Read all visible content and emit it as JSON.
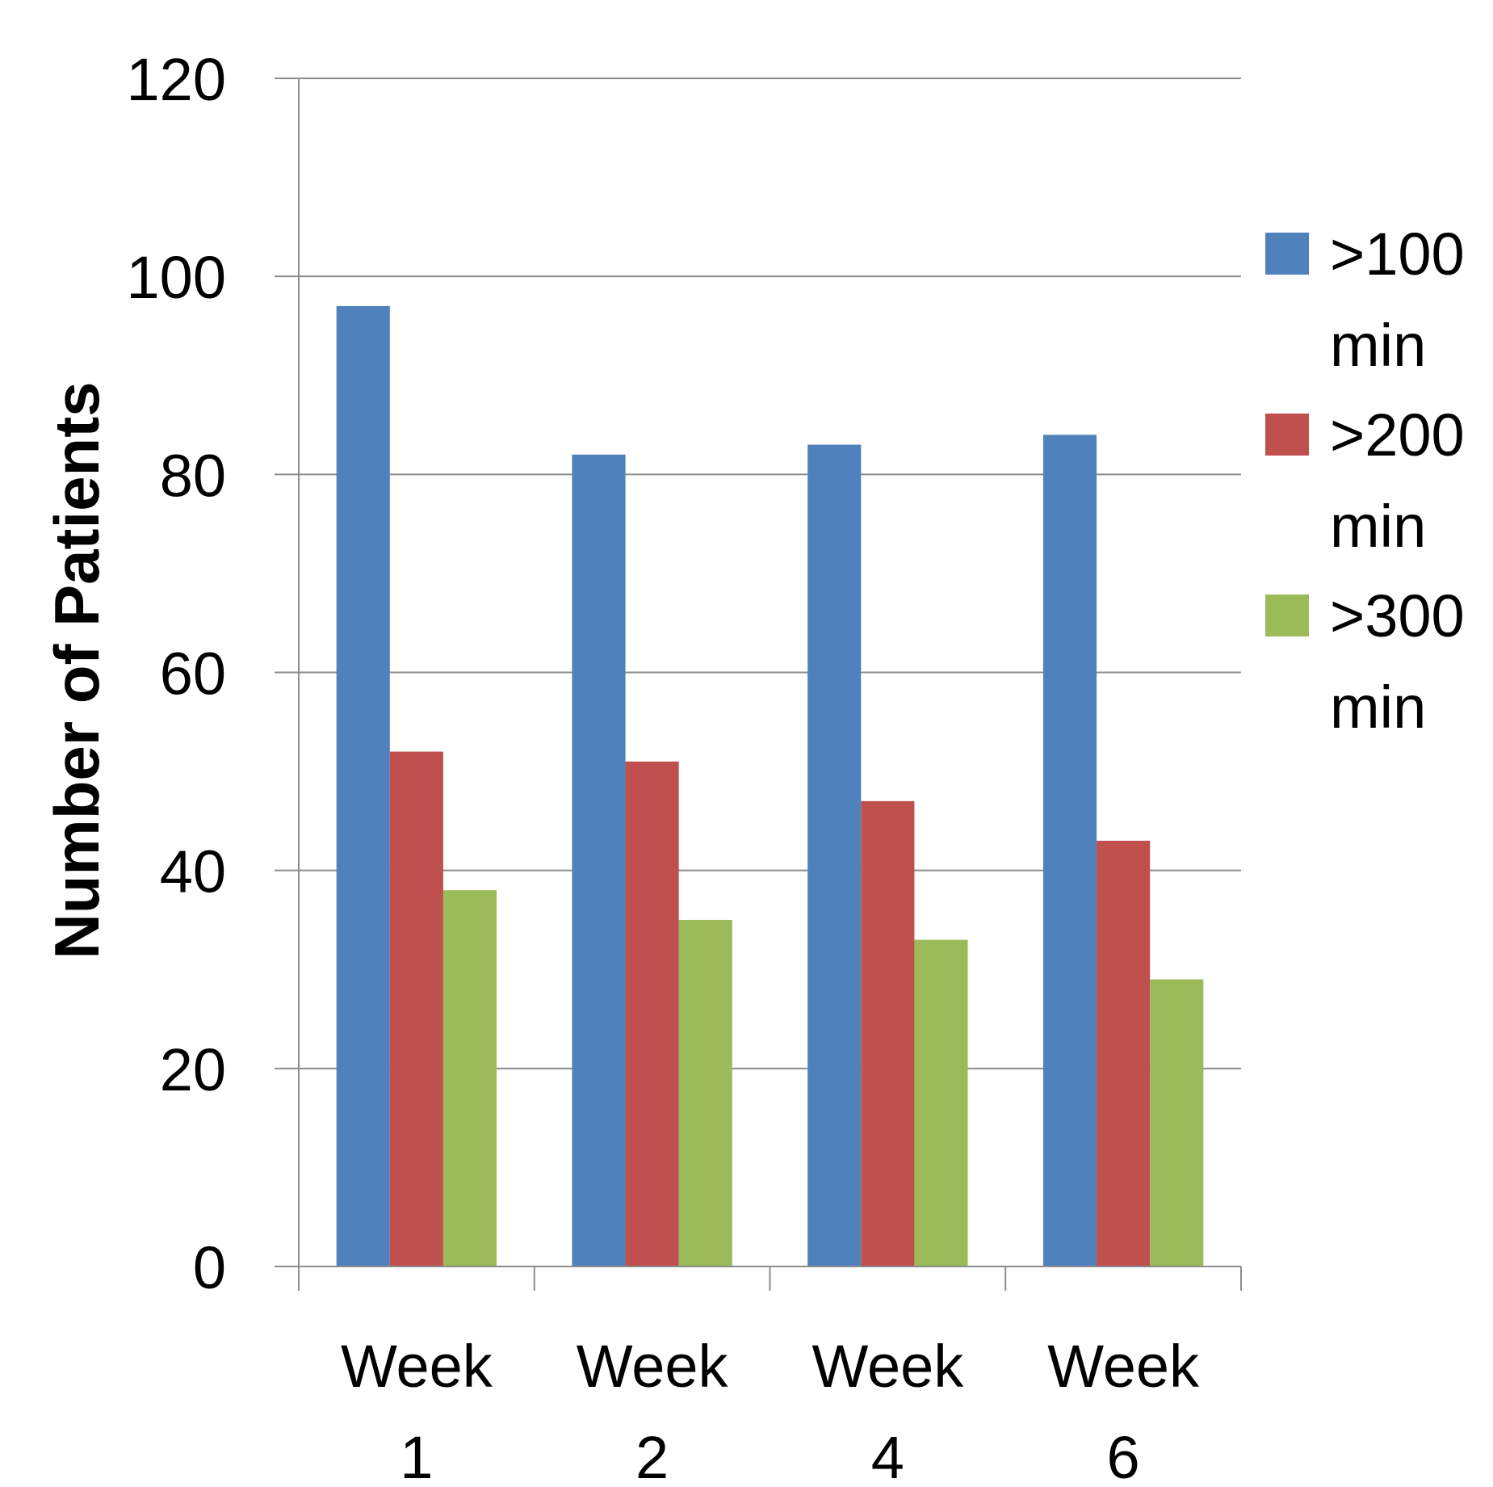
{
  "chart_data": {
    "type": "bar",
    "title": "",
    "xlabel": "",
    "ylabel": "Number of  Patients",
    "ylim": [
      0,
      120
    ],
    "yticks": [
      0,
      20,
      40,
      60,
      80,
      100,
      120
    ],
    "grid": true,
    "legend_position": "right",
    "categories": [
      [
        "Week",
        "1"
      ],
      [
        "Week",
        "2"
      ],
      [
        "Week",
        "4"
      ],
      [
        "Week",
        "6"
      ]
    ],
    "series": [
      {
        "name": [
          ">100",
          "min"
        ],
        "color": "#4f81bd",
        "values": [
          97,
          82,
          83,
          84
        ]
      },
      {
        "name": [
          ">200",
          "min"
        ],
        "color": "#c0504d",
        "values": [
          52,
          51,
          47,
          43
        ]
      },
      {
        "name": [
          ">300",
          "min"
        ],
        "color": "#9bbb59",
        "values": [
          38,
          35,
          33,
          29
        ]
      }
    ]
  }
}
